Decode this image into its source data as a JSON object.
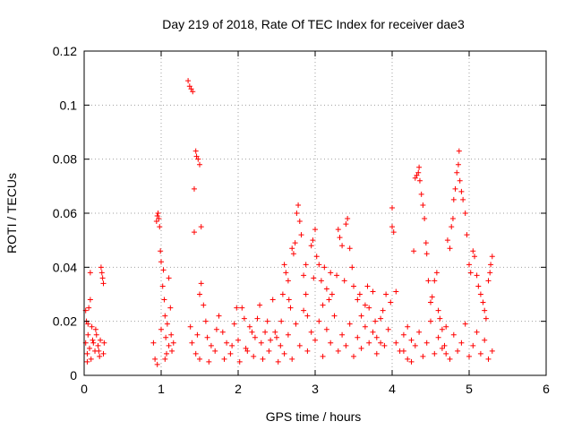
{
  "chart_data": {
    "type": "scatter",
    "title": "Day 219 of 2018, Rate Of TEC Index for receiver dae3",
    "xlabel": "GPS time / hours",
    "ylabel": "ROTI / TECUs",
    "xlim": [
      0,
      6
    ],
    "ylim": [
      0,
      0.12
    ],
    "x_ticks": [
      0,
      1,
      2,
      3,
      4,
      5,
      6
    ],
    "y_ticks": [
      0,
      0.02,
      0.04,
      0.06,
      0.08,
      0.1,
      0.12
    ],
    "x_tick_labels": [
      "0",
      "1",
      "2",
      "3",
      "4",
      "5",
      "6"
    ],
    "y_tick_labels": [
      "0",
      "0.02",
      "0.04",
      "0.06",
      "0.08",
      "0.1",
      "0.12"
    ],
    "grid": true,
    "marker": "+",
    "color": "#ff0000",
    "series": [
      {
        "name": "ROTI",
        "points": [
          [
            0.02,
            0.012
          ],
          [
            0.03,
            0.02
          ],
          [
            0.04,
            0.008
          ],
          [
            0.05,
            0.015
          ],
          [
            0.06,
            0.025
          ],
          [
            0.07,
            0.01
          ],
          [
            0.08,
            0.028
          ],
          [
            0.09,
            0.006
          ],
          [
            0.1,
            0.018
          ],
          [
            0.12,
            0.012
          ],
          [
            0.14,
            0.009
          ],
          [
            0.16,
            0.015
          ],
          [
            0.18,
            0.011
          ],
          [
            0.2,
            0.007
          ],
          [
            0.22,
            0.04
          ],
          [
            0.23,
            0.038
          ],
          [
            0.24,
            0.036
          ],
          [
            0.25,
            0.034
          ],
          [
            0.26,
            0.012
          ],
          [
            0.08,
            0.038
          ],
          [
            0.02,
            0.024
          ],
          [
            0.05,
            0.019
          ],
          [
            0.11,
            0.013
          ],
          [
            0.15,
            0.017
          ],
          [
            0.19,
            0.009
          ],
          [
            0.21,
            0.013
          ],
          [
            0.25,
            0.008
          ],
          [
            0.04,
            0.005
          ],
          [
            0.9,
            0.012
          ],
          [
            0.92,
            0.006
          ],
          [
            0.94,
            0.057
          ],
          [
            0.95,
            0.059
          ],
          [
            0.96,
            0.06
          ],
          [
            0.97,
            0.058
          ],
          [
            0.98,
            0.055
          ],
          [
            0.99,
            0.046
          ],
          [
            1.0,
            0.042
          ],
          [
            1.02,
            0.033
          ],
          [
            1.03,
            0.039
          ],
          [
            1.04,
            0.028
          ],
          [
            1.05,
            0.022
          ],
          [
            1.06,
            0.014
          ],
          [
            1.07,
            0.008
          ],
          [
            1.08,
            0.019
          ],
          [
            1.1,
            0.036
          ],
          [
            1.12,
            0.025
          ],
          [
            1.14,
            0.009
          ],
          [
            1.16,
            0.012
          ],
          [
            0.95,
            0.004
          ],
          [
            1.0,
            0.017
          ],
          [
            1.05,
            0.006
          ],
          [
            1.1,
            0.011
          ],
          [
            1.13,
            0.015
          ],
          [
            1.35,
            0.109
          ],
          [
            1.37,
            0.107
          ],
          [
            1.39,
            0.106
          ],
          [
            1.41,
            0.105
          ],
          [
            1.43,
            0.069
          ],
          [
            1.45,
            0.083
          ],
          [
            1.46,
            0.081
          ],
          [
            1.48,
            0.08
          ],
          [
            1.5,
            0.078
          ],
          [
            1.52,
            0.055
          ],
          [
            1.43,
            0.053
          ],
          [
            1.5,
            0.03
          ],
          [
            1.52,
            0.034
          ],
          [
            1.55,
            0.026
          ],
          [
            1.58,
            0.02
          ],
          [
            1.38,
            0.018
          ],
          [
            1.4,
            0.012
          ],
          [
            1.45,
            0.008
          ],
          [
            1.47,
            0.015
          ],
          [
            1.5,
            0.006
          ],
          [
            1.6,
            0.014
          ],
          [
            1.65,
            0.011
          ],
          [
            1.7,
            0.009
          ],
          [
            1.75,
            0.022
          ],
          [
            1.8,
            0.016
          ],
          [
            1.85,
            0.012
          ],
          [
            1.9,
            0.008
          ],
          [
            1.95,
            0.019
          ],
          [
            2.0,
            0.013
          ],
          [
            2.05,
            0.025
          ],
          [
            2.1,
            0.01
          ],
          [
            2.15,
            0.018
          ],
          [
            2.2,
            0.007
          ],
          [
            2.25,
            0.021
          ],
          [
            2.3,
            0.012
          ],
          [
            2.35,
            0.016
          ],
          [
            2.4,
            0.009
          ],
          [
            2.45,
            0.028
          ],
          [
            2.5,
            0.014
          ],
          [
            2.55,
            0.011
          ],
          [
            2.58,
            0.03
          ],
          [
            2.6,
            0.041
          ],
          [
            2.62,
            0.038
          ],
          [
            2.65,
            0.035
          ],
          [
            2.68,
            0.025
          ],
          [
            2.7,
            0.047
          ],
          [
            2.72,
            0.045
          ],
          [
            2.74,
            0.049
          ],
          [
            2.76,
            0.06
          ],
          [
            2.78,
            0.063
          ],
          [
            2.8,
            0.057
          ],
          [
            2.82,
            0.052
          ],
          [
            2.85,
            0.037
          ],
          [
            2.88,
            0.03
          ],
          [
            2.9,
            0.022
          ],
          [
            2.95,
            0.048
          ],
          [
            2.97,
            0.05
          ],
          [
            3.0,
            0.054
          ],
          [
            3.02,
            0.044
          ],
          [
            3.05,
            0.041
          ],
          [
            3.08,
            0.035
          ],
          [
            3.1,
            0.026
          ],
          [
            3.15,
            0.032
          ],
          [
            3.2,
            0.038
          ],
          [
            3.22,
            0.03
          ],
          [
            3.3,
            0.054
          ],
          [
            3.32,
            0.051
          ],
          [
            3.35,
            0.048
          ],
          [
            3.4,
            0.056
          ],
          [
            3.42,
            0.058
          ],
          [
            3.45,
            0.047
          ],
          [
            3.48,
            0.04
          ],
          [
            3.5,
            0.033
          ],
          [
            3.55,
            0.028
          ],
          [
            3.6,
            0.022
          ],
          [
            3.65,
            0.018
          ],
          [
            3.7,
            0.025
          ],
          [
            3.75,
            0.031
          ],
          [
            3.8,
            0.014
          ],
          [
            3.85,
            0.012
          ],
          [
            2.6,
            0.008
          ],
          [
            2.65,
            0.015
          ],
          [
            2.7,
            0.006
          ],
          [
            2.75,
            0.019
          ],
          [
            2.8,
            0.011
          ],
          [
            2.85,
            0.024
          ],
          [
            2.9,
            0.009
          ],
          [
            2.95,
            0.016
          ],
          [
            3.0,
            0.013
          ],
          [
            3.05,
            0.02
          ],
          [
            3.1,
            0.007
          ],
          [
            3.15,
            0.017
          ],
          [
            3.2,
            0.012
          ],
          [
            3.25,
            0.022
          ],
          [
            3.3,
            0.009
          ],
          [
            3.35,
            0.015
          ],
          [
            3.4,
            0.011
          ],
          [
            3.45,
            0.019
          ],
          [
            3.5,
            0.007
          ],
          [
            3.55,
            0.014
          ],
          [
            3.6,
            0.01
          ],
          [
            3.65,
            0.026
          ],
          [
            3.7,
            0.012
          ],
          [
            3.75,
            0.016
          ],
          [
            3.8,
            0.008
          ],
          [
            3.85,
            0.021
          ],
          [
            3.9,
            0.011
          ],
          [
            3.95,
            0.017
          ],
          [
            4.0,
            0.062
          ],
          [
            4.02,
            0.053
          ],
          [
            4.0,
            0.055
          ],
          [
            4.05,
            0.031
          ],
          [
            4.05,
            0.012
          ],
          [
            4.1,
            0.009
          ],
          [
            4.15,
            0.015
          ],
          [
            4.2,
            0.006
          ],
          [
            4.25,
            0.013
          ],
          [
            4.28,
            0.046
          ],
          [
            4.3,
            0.073
          ],
          [
            4.32,
            0.074
          ],
          [
            4.34,
            0.075
          ],
          [
            4.35,
            0.077
          ],
          [
            4.36,
            0.072
          ],
          [
            4.38,
            0.067
          ],
          [
            4.4,
            0.063
          ],
          [
            4.42,
            0.058
          ],
          [
            4.44,
            0.049
          ],
          [
            4.45,
            0.045
          ],
          [
            4.47,
            0.035
          ],
          [
            4.5,
            0.027
          ],
          [
            4.52,
            0.029
          ],
          [
            4.55,
            0.035
          ],
          [
            4.58,
            0.038
          ],
          [
            4.6,
            0.024
          ],
          [
            4.62,
            0.021
          ],
          [
            4.65,
            0.017
          ],
          [
            4.68,
            0.011
          ],
          [
            4.7,
            0.008
          ],
          [
            4.72,
            0.05
          ],
          [
            4.75,
            0.047
          ],
          [
            4.77,
            0.055
          ],
          [
            4.79,
            0.058
          ],
          [
            4.8,
            0.065
          ],
          [
            4.82,
            0.069
          ],
          [
            4.84,
            0.075
          ],
          [
            4.86,
            0.078
          ],
          [
            4.87,
            0.083
          ],
          [
            4.88,
            0.072
          ],
          [
            4.9,
            0.068
          ],
          [
            4.92,
            0.065
          ],
          [
            4.95,
            0.06
          ],
          [
            4.97,
            0.052
          ],
          [
            5.0,
            0.041
          ],
          [
            5.02,
            0.038
          ],
          [
            5.05,
            0.046
          ],
          [
            5.07,
            0.044
          ],
          [
            5.1,
            0.037
          ],
          [
            5.12,
            0.033
          ],
          [
            5.15,
            0.03
          ],
          [
            5.18,
            0.027
          ],
          [
            5.2,
            0.024
          ],
          [
            5.22,
            0.021
          ],
          [
            5.25,
            0.035
          ],
          [
            5.27,
            0.038
          ],
          [
            5.28,
            0.041
          ],
          [
            5.3,
            0.044
          ],
          [
            5.3,
            0.009
          ],
          [
            5.25,
            0.006
          ],
          [
            5.2,
            0.013
          ],
          [
            5.15,
            0.008
          ],
          [
            5.1,
            0.016
          ],
          [
            5.05,
            0.011
          ],
          [
            5.0,
            0.007
          ],
          [
            4.95,
            0.019
          ],
          [
            4.9,
            0.012
          ],
          [
            4.85,
            0.009
          ],
          [
            4.8,
            0.015
          ],
          [
            4.75,
            0.006
          ],
          [
            4.7,
            0.018
          ],
          [
            4.65,
            0.01
          ],
          [
            4.6,
            0.014
          ],
          [
            4.55,
            0.008
          ],
          [
            4.5,
            0.02
          ],
          [
            4.45,
            0.012
          ],
          [
            4.4,
            0.007
          ],
          [
            4.35,
            0.016
          ],
          [
            4.3,
            0.011
          ],
          [
            4.25,
            0.005
          ],
          [
            4.2,
            0.018
          ],
          [
            4.15,
            0.009
          ],
          [
            1.62,
            0.005
          ],
          [
            1.72,
            0.017
          ],
          [
            1.82,
            0.006
          ],
          [
            1.92,
            0.011
          ],
          [
            2.02,
            0.005
          ],
          [
            2.12,
            0.009
          ],
          [
            2.22,
            0.014
          ],
          [
            2.32,
            0.006
          ],
          [
            2.42,
            0.013
          ],
          [
            2.52,
            0.005
          ],
          [
            1.98,
            0.025
          ],
          [
            2.08,
            0.021
          ],
          [
            2.18,
            0.016
          ],
          [
            2.28,
            0.026
          ],
          [
            2.38,
            0.02
          ],
          [
            2.48,
            0.016
          ],
          [
            2.56,
            0.02
          ],
          [
            2.66,
            0.028
          ],
          [
            3.92,
            0.03
          ],
          [
            3.98,
            0.027
          ],
          [
            3.78,
            0.02
          ],
          [
            3.88,
            0.024
          ],
          [
            3.58,
            0.03
          ],
          [
            3.68,
            0.033
          ],
          [
            3.28,
            0.037
          ],
          [
            3.18,
            0.028
          ],
          [
            2.98,
            0.036
          ],
          [
            2.88,
            0.041
          ],
          [
            3.12,
            0.04
          ],
          [
            3.38,
            0.035
          ]
        ]
      }
    ]
  }
}
